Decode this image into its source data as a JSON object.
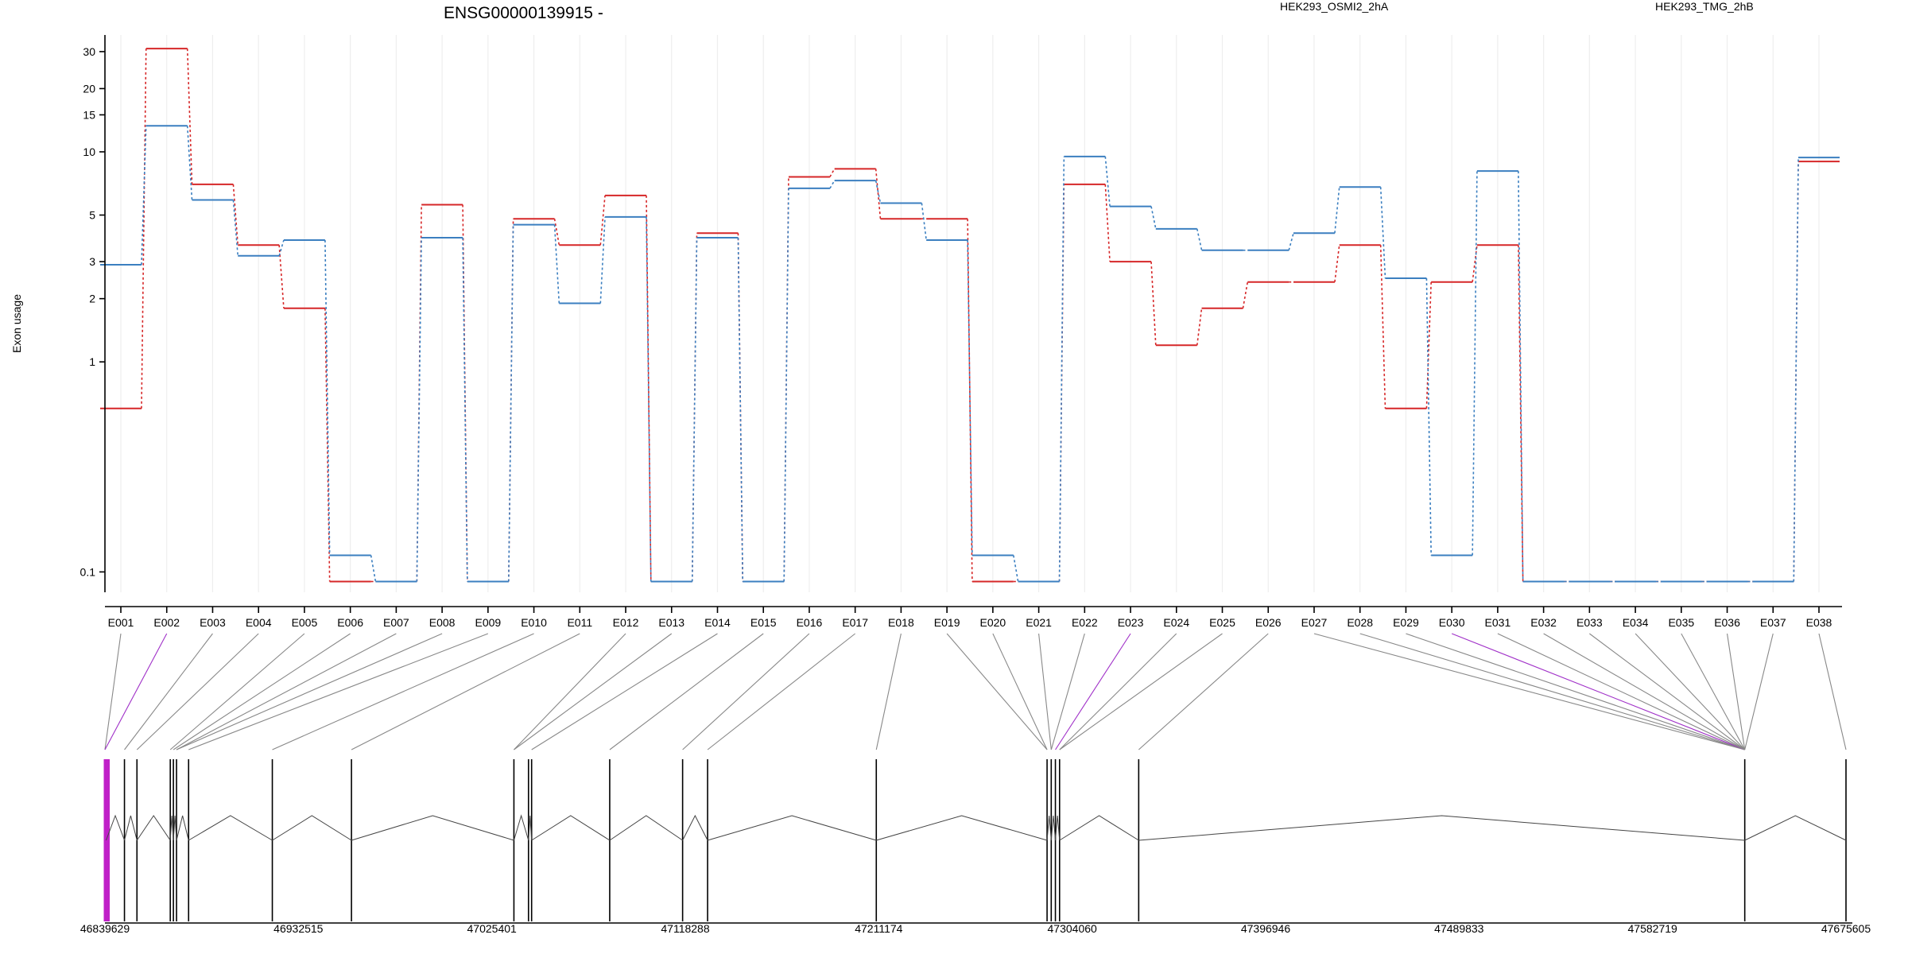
{
  "gene": "ENSG00000139915 -",
  "legend": [
    {
      "label": "HEK293_OSMI2_2hA",
      "color": "#d62728"
    },
    {
      "label": "HEK293_TMG_2hB",
      "color": "#3b7fc0"
    }
  ],
  "chart_data": {
    "type": "line",
    "scale": "log",
    "ylabel": "Exon usage",
    "yticks": [
      0.1,
      1,
      2,
      3,
      5,
      10,
      15,
      20,
      30
    ],
    "yticklabels": [
      "0.1",
      "1",
      "2",
      "3",
      "5",
      "10",
      "15",
      "20",
      "30"
    ],
    "ylim": [
      0.08,
      36
    ],
    "grid": true,
    "legend_position": "top",
    "categories": [
      "E001",
      "E002",
      "E003",
      "E004",
      "E005",
      "E006",
      "E007",
      "E008",
      "E009",
      "E010",
      "E011",
      "E012",
      "E013",
      "E014",
      "E015",
      "E016",
      "E017",
      "E018",
      "E019",
      "E020",
      "E021",
      "E022",
      "E023",
      "E024",
      "E025",
      "E026",
      "E027",
      "E028",
      "E029",
      "E030",
      "E031",
      "E032",
      "E033",
      "E034",
      "E035",
      "E036",
      "E037",
      "E038"
    ],
    "series": [
      {
        "name": "HEK293_OSMI2_2hA",
        "color": "#d62728",
        "values": [
          0.6,
          31,
          7,
          3.6,
          1.8,
          0.09,
          0.09,
          5.6,
          0.09,
          4.8,
          3.6,
          6.2,
          0.09,
          4.1,
          0.09,
          7.6,
          8.3,
          4.8,
          4.8,
          0.09,
          0.09,
          7.0,
          3.0,
          1.2,
          1.8,
          2.4,
          2.4,
          3.6,
          0.6,
          2.4,
          3.6,
          0.09,
          0.09,
          0.09,
          0.09,
          0.09,
          0.09,
          9.0
        ]
      },
      {
        "name": "HEK293_TMG_2hB",
        "color": "#3b7fc0",
        "values": [
          2.9,
          13.3,
          5.9,
          3.2,
          3.8,
          0.12,
          0.09,
          3.9,
          0.09,
          4.5,
          1.9,
          4.9,
          0.09,
          3.9,
          0.09,
          6.7,
          7.3,
          5.7,
          3.8,
          0.12,
          0.09,
          9.5,
          5.5,
          4.3,
          3.4,
          3.4,
          4.1,
          6.8,
          2.5,
          0.12,
          8.1,
          0.09,
          0.09,
          0.09,
          0.09,
          0.09,
          0.09,
          9.4
        ]
      }
    ]
  },
  "gene_model": {
    "coord_labels": [
      "46839629",
      "46932515",
      "47025401",
      "47118288",
      "47211174",
      "47304060",
      "47396946",
      "47489833",
      "47582719",
      "47675605"
    ],
    "coord_range": [
      46839629,
      47675605
    ],
    "exon_genomic_positions": [
      46839629,
      46840200,
      46849000,
      46855000,
      46871000,
      46872500,
      46874000,
      46879800,
      46920000,
      46958000,
      47036000,
      47043000,
      47044500,
      47082000,
      47117000,
      47129000,
      47210000,
      47292000,
      47294000,
      47296000,
      47298000,
      47336000,
      47627000,
      47675605
    ],
    "highlighted_exons": [
      "E002",
      "E023",
      "E030"
    ],
    "exon_connector_targets": [
      0,
      0,
      2,
      3,
      4,
      5,
      6,
      6,
      7,
      8,
      9,
      10,
      10,
      12,
      13,
      14,
      15,
      16,
      17,
      17,
      18,
      18,
      19,
      20,
      20,
      21,
      22,
      22,
      22,
      22,
      22,
      22,
      22,
      22,
      22,
      22,
      22,
      23
    ],
    "highlighted_connectors": [
      1,
      22,
      29
    ]
  }
}
